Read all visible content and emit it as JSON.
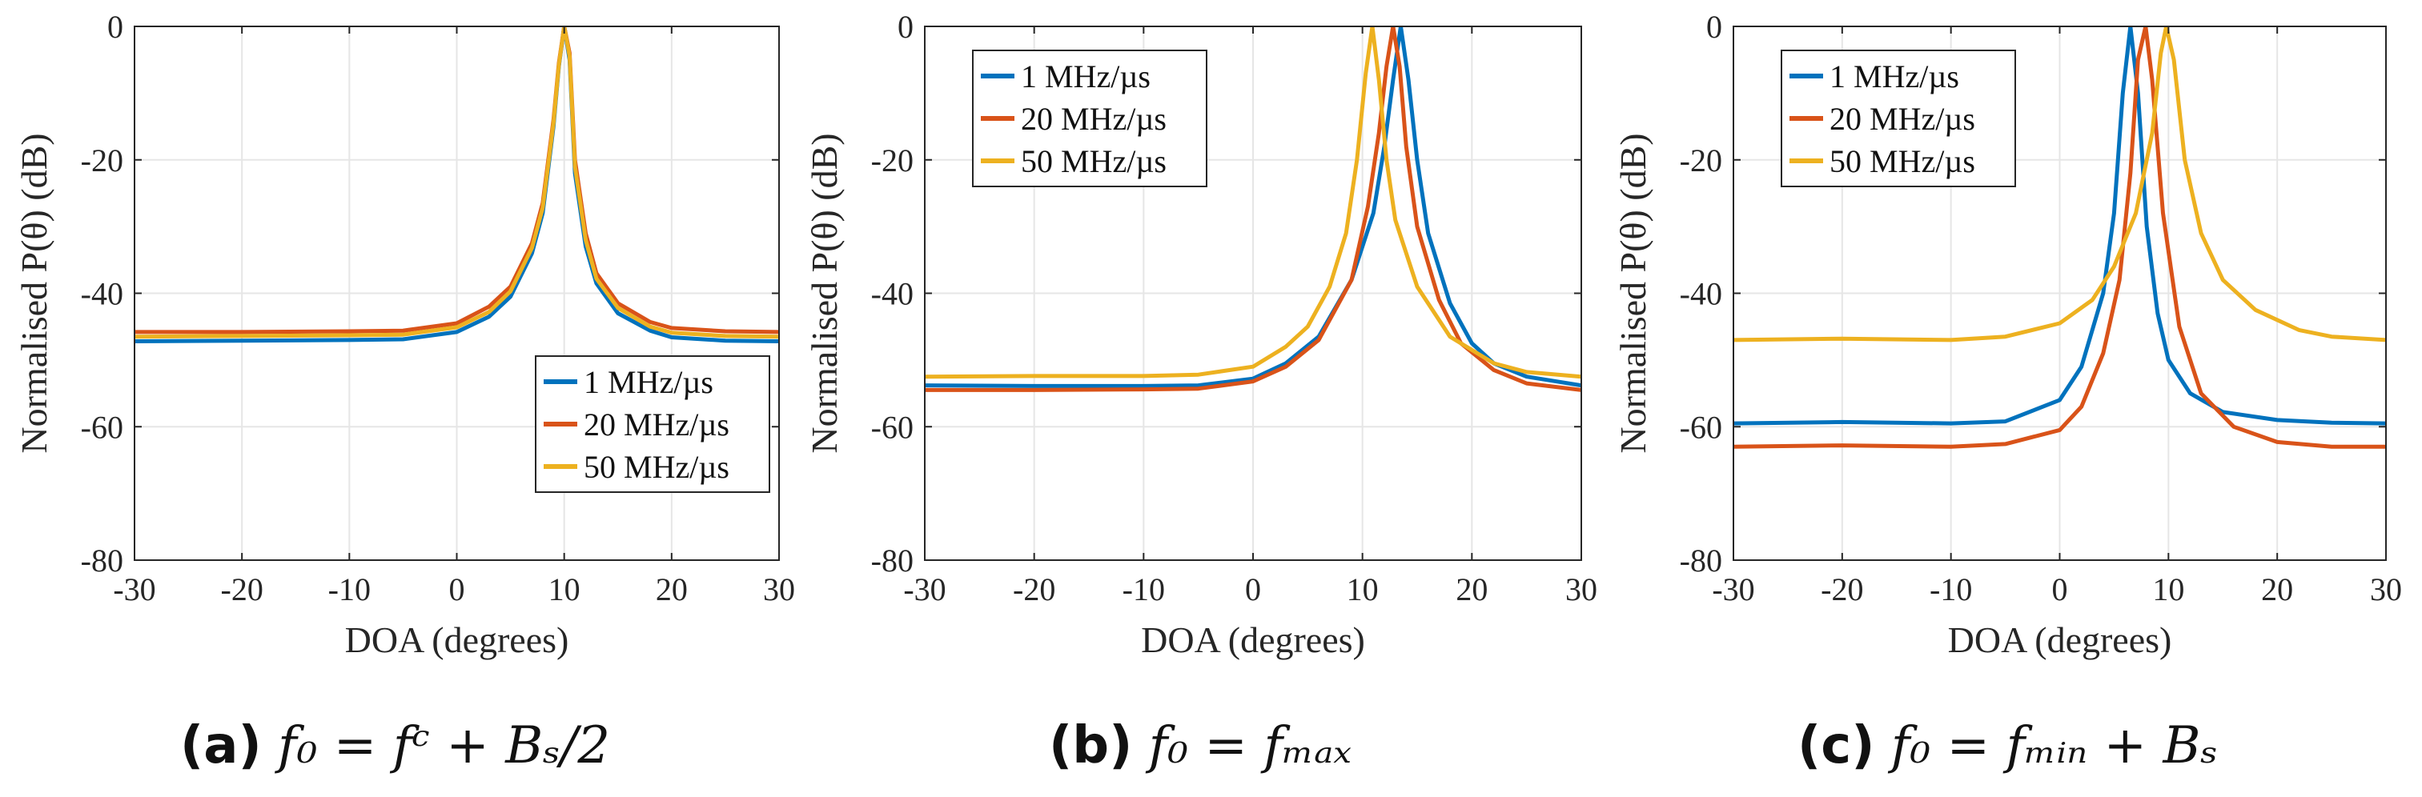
{
  "colors": {
    "series": [
      "#0072BD",
      "#D95319",
      "#EDB120"
    ],
    "axis": "#262626",
    "grid": "#e6e6e6"
  },
  "legend_entries": [
    "1 MHz/µs",
    "20 MHz/µs",
    "50 MHz/µs"
  ],
  "chart_data": [
    {
      "type": "line",
      "panel_label": "(a)",
      "caption_math": "f₀ = fᶜ + Bₛ/2",
      "xlabel": "DOA (degrees)",
      "ylabel": "Normalised P(θ) (dB)",
      "xlim": [
        -30,
        30
      ],
      "ylim": [
        -80,
        0
      ],
      "xticks": [
        -30,
        -20,
        -10,
        0,
        10,
        20,
        30
      ],
      "yticks": [
        -80,
        -60,
        -40,
        -20,
        0
      ],
      "grid": true,
      "legend_position": "bottom-right",
      "series": [
        {
          "name": "1 MHz/µs",
          "color": "#0072BD",
          "x": [
            -30,
            -20,
            -10,
            -5,
            0,
            3,
            5,
            7,
            8,
            9,
            9.5,
            10,
            10.5,
            11,
            12,
            13,
            15,
            18,
            20,
            25,
            30
          ],
          "y": [
            -47.2,
            -47.1,
            -47,
            -46.9,
            -45.8,
            -43.5,
            -40.5,
            -34,
            -28,
            -15,
            -6,
            0,
            -5,
            -22,
            -33,
            -38.5,
            -43,
            -45.6,
            -46.6,
            -47.1,
            -47.2
          ]
        },
        {
          "name": "20 MHz/µs",
          "color": "#D95319",
          "x": [
            -30,
            -20,
            -10,
            -5,
            0,
            3,
            5,
            7,
            8,
            9,
            9.5,
            10,
            10.5,
            11,
            12,
            13,
            15,
            18,
            20,
            25,
            30
          ],
          "y": [
            -45.8,
            -45.8,
            -45.7,
            -45.6,
            -44.5,
            -42,
            -39,
            -32.5,
            -26.5,
            -14,
            -5.5,
            0,
            -4,
            -20,
            -31,
            -37,
            -41.5,
            -44.3,
            -45.2,
            -45.7,
            -45.8
          ]
        },
        {
          "name": "50 MHz/µs",
          "color": "#EDB120",
          "x": [
            -30,
            -20,
            -10,
            -5,
            0,
            3,
            5,
            7,
            8,
            9,
            9.5,
            10,
            10.5,
            11,
            12,
            13,
            15,
            18,
            20,
            25,
            30
          ],
          "y": [
            -46.5,
            -46.4,
            -46.3,
            -46.2,
            -45.1,
            -42.8,
            -39.7,
            -33.2,
            -27.2,
            -14.5,
            -5.8,
            0,
            -4.5,
            -21,
            -32,
            -37.8,
            -42.2,
            -45,
            -45.9,
            -46.4,
            -46.5
          ]
        }
      ]
    },
    {
      "type": "line",
      "panel_label": "(b)",
      "caption_math": "f₀ = fₘₐₓ",
      "xlabel": "DOA (degrees)",
      "ylabel": "Normalised P(θ) (dB)",
      "xlim": [
        -30,
        30
      ],
      "ylim": [
        -80,
        0
      ],
      "xticks": [
        -30,
        -20,
        -10,
        0,
        10,
        20,
        30
      ],
      "yticks": [
        -80,
        -60,
        -40,
        -20,
        0
      ],
      "grid": true,
      "legend_position": "top-left",
      "series": [
        {
          "name": "1 MHz/µs",
          "color": "#0072BD",
          "x": [
            -30,
            -20,
            -10,
            -5,
            0,
            3,
            6,
            9,
            11,
            12,
            12.8,
            13.5,
            14.2,
            15,
            16,
            18,
            20,
            22,
            25,
            30
          ],
          "y": [
            -53.8,
            -53.9,
            -53.9,
            -53.8,
            -52.8,
            -50.5,
            -46.5,
            -38,
            -28,
            -18,
            -8,
            0,
            -8,
            -20,
            -31,
            -41.5,
            -47.5,
            -50.5,
            -52.5,
            -53.8
          ]
        },
        {
          "name": "20 MHz/µs",
          "color": "#D95319",
          "x": [
            -30,
            -20,
            -10,
            -5,
            0,
            3,
            6,
            9,
            10.5,
            11.5,
            12.2,
            12.8,
            13.4,
            14,
            15,
            17,
            19,
            22,
            25,
            30
          ],
          "y": [
            -54.5,
            -54.5,
            -54.4,
            -54.3,
            -53.2,
            -51,
            -47,
            -38,
            -27,
            -16,
            -6,
            0,
            -6,
            -18,
            -30,
            -41,
            -47.5,
            -51.5,
            -53.5,
            -54.5
          ]
        },
        {
          "name": "50 MHz/µs",
          "color": "#EDB120",
          "x": [
            -30,
            -20,
            -10,
            -5,
            0,
            3,
            5,
            7,
            8.5,
            9.5,
            10.3,
            10.9,
            11.5,
            12.2,
            13,
            15,
            18,
            22,
            25,
            30
          ],
          "y": [
            -52.5,
            -52.4,
            -52.4,
            -52.2,
            -51,
            -48,
            -45,
            -39,
            -31,
            -20,
            -7,
            0,
            -8,
            -20,
            -29,
            -39,
            -46.5,
            -50.5,
            -51.8,
            -52.5
          ]
        }
      ]
    },
    {
      "type": "line",
      "panel_label": "(c)",
      "caption_math": "f₀ = fₘᵢₙ + Bₛ",
      "xlabel": "DOA (degrees)",
      "ylabel": "Normalised P(θ) (dB)",
      "xlim": [
        -30,
        30
      ],
      "ylim": [
        -80,
        0
      ],
      "xticks": [
        -30,
        -20,
        -10,
        0,
        10,
        20,
        30
      ],
      "yticks": [
        -80,
        -60,
        -40,
        -20,
        0
      ],
      "grid": true,
      "legend_position": "top-left",
      "series": [
        {
          "name": "1 MHz/µs",
          "color": "#0072BD",
          "x": [
            -30,
            -20,
            -10,
            -5,
            0,
            2,
            4,
            5,
            5.8,
            6.5,
            7.2,
            8,
            9,
            10,
            12,
            15,
            20,
            25,
            30
          ],
          "y": [
            -59.5,
            -59.3,
            -59.5,
            -59.2,
            -56,
            -51,
            -40,
            -28,
            -10,
            0,
            -10,
            -30,
            -43,
            -50,
            -55,
            -57.8,
            -59,
            -59.4,
            -59.5
          ]
        },
        {
          "name": "20 MHz/µs",
          "color": "#D95319",
          "x": [
            -30,
            -20,
            -10,
            -5,
            0,
            2,
            4,
            5.5,
            6.5,
            7.2,
            7.9,
            8.5,
            9.5,
            11,
            13,
            16,
            20,
            25,
            30
          ],
          "y": [
            -63,
            -62.8,
            -63,
            -62.6,
            -60.5,
            -57,
            -49,
            -38,
            -22,
            -5,
            0,
            -8,
            -28,
            -45,
            -55,
            -60,
            -62.3,
            -63,
            -63
          ]
        },
        {
          "name": "50 MHz/µs",
          "color": "#EDB120",
          "x": [
            -30,
            -20,
            -10,
            -5,
            0,
            3,
            5,
            7,
            8.5,
            9.3,
            9.8,
            10.5,
            11.5,
            13,
            15,
            18,
            22,
            25,
            30
          ],
          "y": [
            -47,
            -46.8,
            -47,
            -46.5,
            -44.5,
            -41,
            -36,
            -28,
            -16,
            -4,
            0,
            -5,
            -20,
            -31,
            -38,
            -42.5,
            -45.5,
            -46.5,
            -47
          ]
        }
      ]
    }
  ]
}
